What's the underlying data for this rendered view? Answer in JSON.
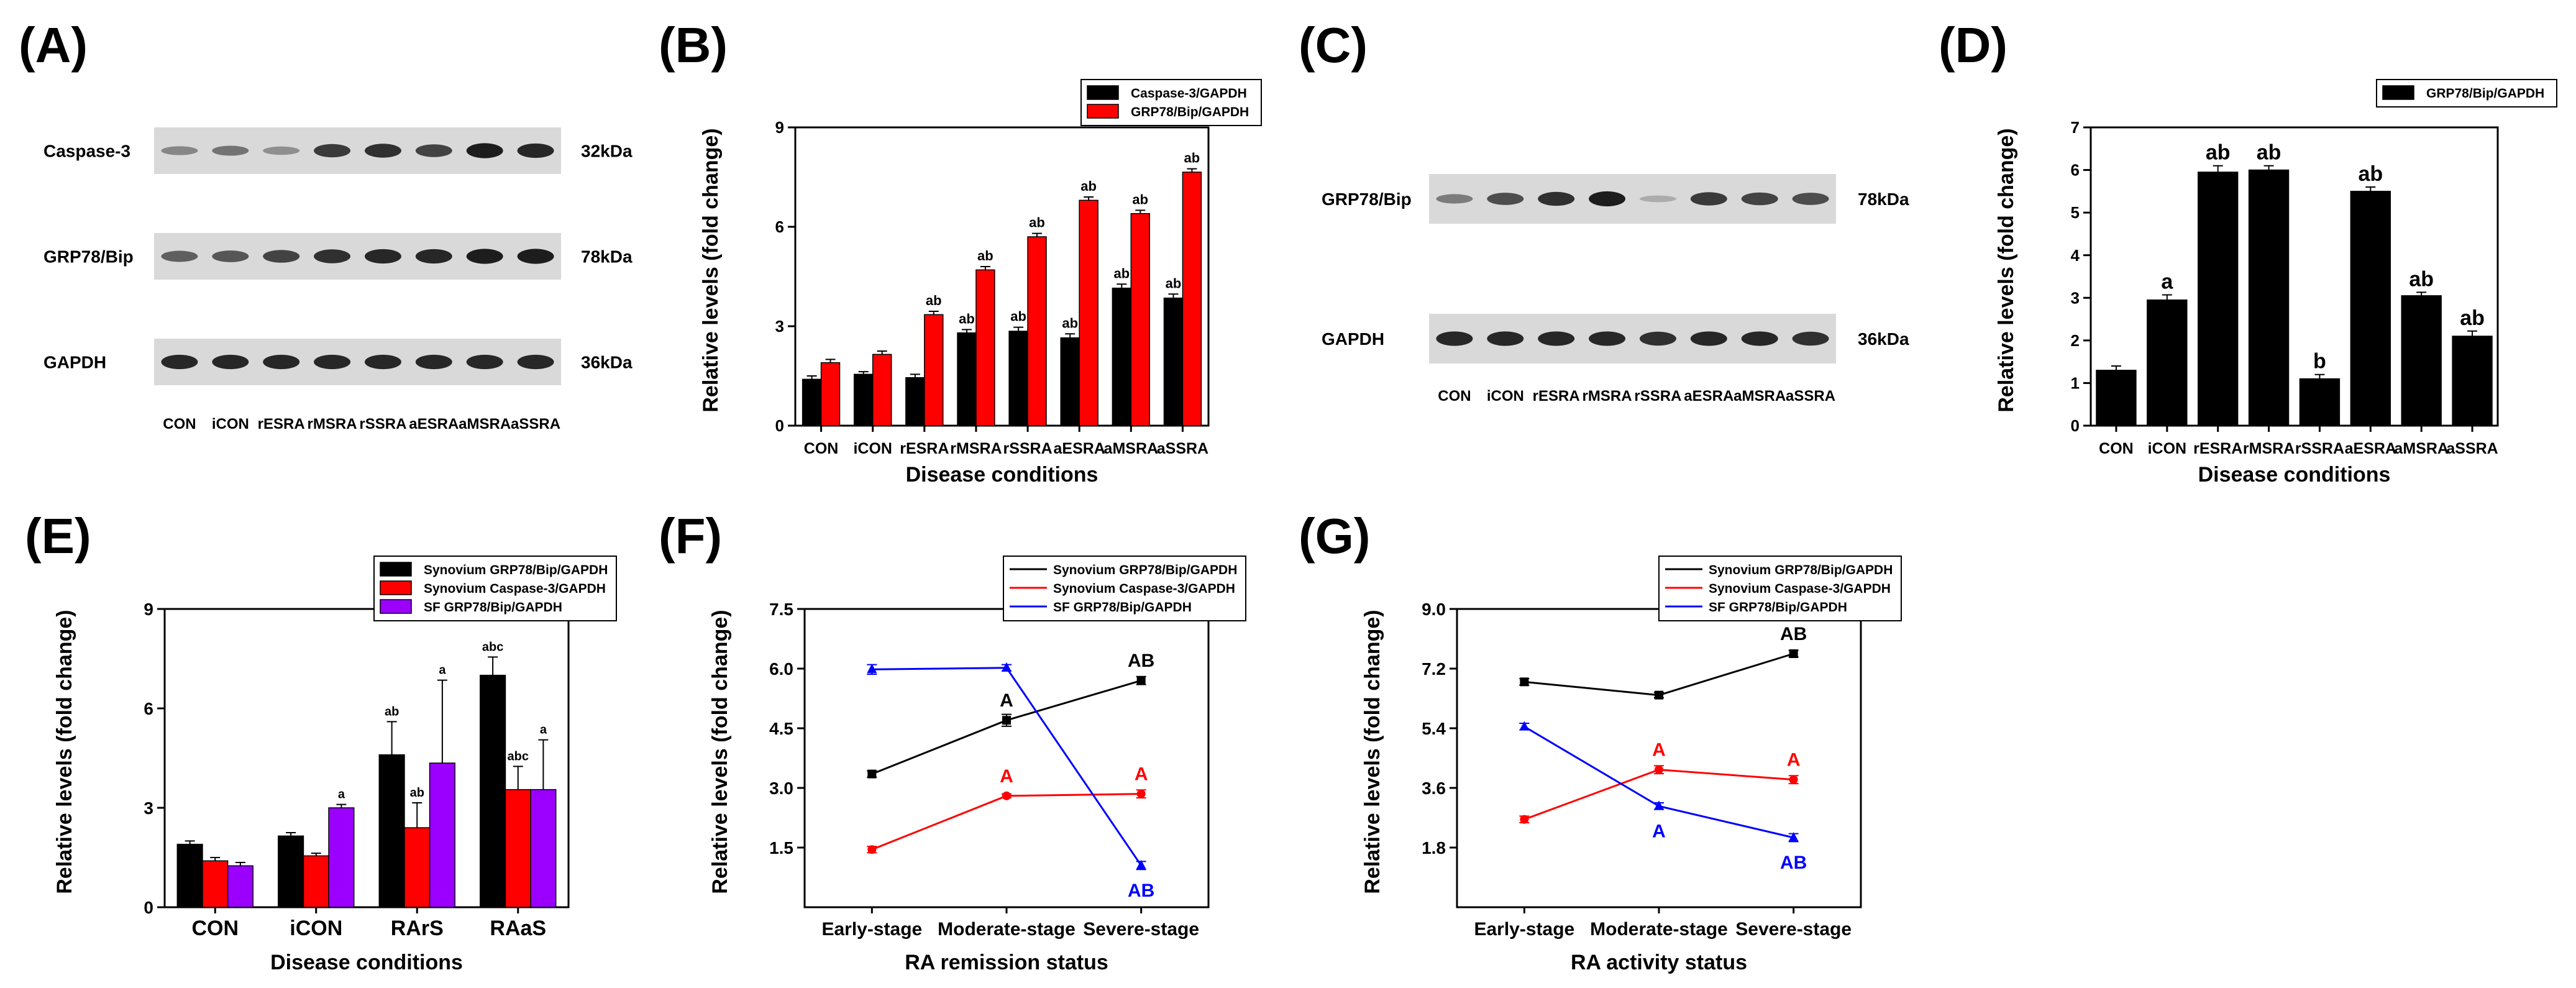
{
  "panels": {
    "A": "(A)",
    "B": "(B)",
    "C": "(C)",
    "D": "(D)",
    "E": "(E)",
    "F": "(F)",
    "G": "(G)"
  },
  "blots": {
    "A": {
      "rows": [
        {
          "label": "Caspase-3",
          "size": "32kDa",
          "bands": [
            0.35,
            0.45,
            0.3,
            0.75,
            0.8,
            0.7,
            0.9,
            0.85
          ]
        },
        {
          "label": "GRP78/Bip",
          "size": "78kDa",
          "bands": [
            0.55,
            0.6,
            0.7,
            0.8,
            0.85,
            0.85,
            0.9,
            0.9
          ]
        },
        {
          "label": "GAPDH",
          "size": "36kDa",
          "bands": [
            0.85,
            0.85,
            0.85,
            0.85,
            0.85,
            0.85,
            0.85,
            0.85
          ]
        }
      ],
      "lanes": [
        "CON",
        "iCON",
        "rESRA",
        "rMSRA",
        "rSSRA",
        "aESRA",
        "aMSRA",
        "aSSRA"
      ]
    },
    "C": {
      "rows": [
        {
          "label": "GRP78/Bip",
          "size": "78kDa",
          "bands": [
            0.4,
            0.65,
            0.8,
            0.9,
            0.15,
            0.75,
            0.7,
            0.65
          ]
        },
        {
          "label": "GAPDH",
          "size": "36kDa",
          "bands": [
            0.85,
            0.85,
            0.85,
            0.85,
            0.8,
            0.85,
            0.85,
            0.8
          ]
        }
      ],
      "lanes": [
        "CON",
        "iCON",
        "rESRA",
        "rMSRA",
        "rSSRA",
        "aESRA",
        "aMSRA",
        "aSSRA"
      ]
    }
  },
  "chart_data": [
    {
      "id": "B",
      "type": "bar",
      "title": "",
      "xlabel": "Disease conditions",
      "ylabel": "Relative levels (fold change)",
      "ylim": [
        0,
        9
      ],
      "yticks": [
        "0",
        "3",
        "6",
        "9"
      ],
      "categories": [
        "CON",
        "iCON",
        "rESRA",
        "rMSRA",
        "rSSRA",
        "aESRA",
        "aMSRA",
        "aSSRA"
      ],
      "series": [
        {
          "name": "Caspase-3/GAPDH",
          "color": "#000000",
          "values": [
            1.4,
            1.55,
            1.45,
            2.8,
            2.85,
            2.65,
            4.15,
            3.85
          ],
          "err": [
            0.1,
            0.08,
            0.1,
            0.1,
            0.12,
            0.12,
            0.12,
            0.12
          ],
          "labels": [
            "",
            "",
            "",
            "ab",
            "ab",
            "ab",
            "ab",
            "ab"
          ]
        },
        {
          "name": "GRP78/Bip/GAPDH",
          "color": "#ff0000",
          "values": [
            1.9,
            2.15,
            3.35,
            4.7,
            5.7,
            6.8,
            6.4,
            7.65
          ],
          "err": [
            0.1,
            0.1,
            0.1,
            0.1,
            0.1,
            0.1,
            0.1,
            0.1
          ],
          "labels": [
            "",
            "",
            "ab",
            "ab",
            "ab",
            "ab",
            "ab",
            "ab"
          ]
        }
      ]
    },
    {
      "id": "D",
      "type": "bar",
      "title": "",
      "xlabel": "Disease conditions",
      "ylabel": "Relative levels (fold change)",
      "ylim": [
        0,
        7
      ],
      "yticks": [
        "0",
        "1",
        "2",
        "3",
        "4",
        "5",
        "6",
        "7"
      ],
      "categories": [
        "CON",
        "iCON",
        "rESRA",
        "rMSRA",
        "rSSRA",
        "aESRA",
        "aMSRA",
        "aSSRA"
      ],
      "series": [
        {
          "name": "GRP78/Bip/GAPDH",
          "color": "#000000",
          "values": [
            1.3,
            2.95,
            5.95,
            6.0,
            1.1,
            5.5,
            3.05,
            2.1
          ],
          "err": [
            0.1,
            0.12,
            0.15,
            0.1,
            0.1,
            0.1,
            0.08,
            0.12
          ],
          "labels": [
            "",
            "a",
            "ab",
            "ab",
            "b",
            "ab",
            "ab",
            "ab"
          ]
        }
      ]
    },
    {
      "id": "E",
      "type": "bar",
      "title": "",
      "xlabel": "Disease conditions",
      "ylabel": "Relative levels (fold change)",
      "ylim": [
        0,
        9
      ],
      "yticks": [
        "0",
        "3",
        "6",
        "9"
      ],
      "categories": [
        "CON",
        "iCON",
        "RArS",
        "RAaS"
      ],
      "series": [
        {
          "name": "Synovium GRP78/Bip/GAPDH",
          "color": "#000000",
          "values": [
            1.9,
            2.15,
            4.6,
            7.0
          ],
          "err": [
            0.1,
            0.1,
            1.0,
            0.55
          ],
          "labels": [
            "",
            "",
            "ab",
            "abc"
          ]
        },
        {
          "name": "Synovium Caspase-3/GAPDH",
          "color": "#ff0000",
          "values": [
            1.4,
            1.55,
            2.4,
            3.55
          ],
          "err": [
            0.1,
            0.08,
            0.75,
            0.7
          ],
          "labels": [
            "",
            "",
            "ab",
            "abc"
          ]
        },
        {
          "name": "SF GRP78/Bip/GAPDH",
          "color": "#9b00ff",
          "values": [
            1.25,
            3.0,
            4.35,
            3.55
          ],
          "err": [
            0.1,
            0.1,
            2.5,
            1.5
          ],
          "labels": [
            "",
            "a",
            "a",
            "a"
          ]
        }
      ]
    },
    {
      "id": "F",
      "type": "line",
      "title": "",
      "xlabel": "RA remission status",
      "ylabel": "Relative levels (fold change)",
      "ylim": [
        0,
        7.5
      ],
      "yticks": [
        "1.5",
        "3.0",
        "4.5",
        "6.0",
        "7.5"
      ],
      "categories": [
        "Early-stage",
        "Moderate-stage",
        "Severe-stage"
      ],
      "series": [
        {
          "name": "Synovium GRP78/Bip/GAPDH",
          "color": "#000000",
          "marker": "square",
          "values": [
            3.35,
            4.7,
            5.7
          ],
          "err": [
            0.08,
            0.15,
            0.1
          ],
          "labels": [
            "",
            "A",
            "AB"
          ]
        },
        {
          "name": "Synovium Caspase-3/GAPDH",
          "color": "#ff0000",
          "marker": "circle",
          "values": [
            1.45,
            2.8,
            2.85
          ],
          "err": [
            0.08,
            0.05,
            0.1
          ],
          "labels": [
            "",
            "A",
            "A"
          ]
        },
        {
          "name": "SF GRP78/Bip/GAPDH",
          "color": "#0000ff",
          "marker": "triangle",
          "values": [
            5.98,
            6.02,
            1.05
          ],
          "err": [
            0.12,
            0.08,
            0.1
          ],
          "labels": [
            "",
            "",
            "AB"
          ]
        }
      ]
    },
    {
      "id": "G",
      "type": "line",
      "title": "",
      "xlabel": "RA activity status",
      "ylabel": "Relative levels (fold change)",
      "ylim": [
        0,
        9.0
      ],
      "yticks": [
        "1.8",
        "3.6",
        "5.4",
        "7.2",
        "9.0"
      ],
      "categories": [
        "Early-stage",
        "Moderate-stage",
        "Severe-stage"
      ],
      "series": [
        {
          "name": "Synovium GRP78/Bip/GAPDH",
          "color": "#000000",
          "marker": "square",
          "values": [
            6.8,
            6.4,
            7.65
          ],
          "err": [
            0.1,
            0.08,
            0.1
          ],
          "labels": [
            "",
            "",
            "AB"
          ]
        },
        {
          "name": "Synovium Caspase-3/GAPDH",
          "color": "#ff0000",
          "marker": "circle",
          "values": [
            2.65,
            4.15,
            3.85
          ],
          "err": [
            0.1,
            0.12,
            0.12
          ],
          "labels": [
            "",
            "A",
            "A"
          ]
        },
        {
          "name": "SF GRP78/Bip/GAPDH",
          "color": "#0000ff",
          "marker": "triangle",
          "values": [
            5.45,
            3.05,
            2.1
          ],
          "err": [
            0.1,
            0.1,
            0.12
          ],
          "labels": [
            "",
            "A",
            "AB"
          ]
        }
      ]
    }
  ]
}
